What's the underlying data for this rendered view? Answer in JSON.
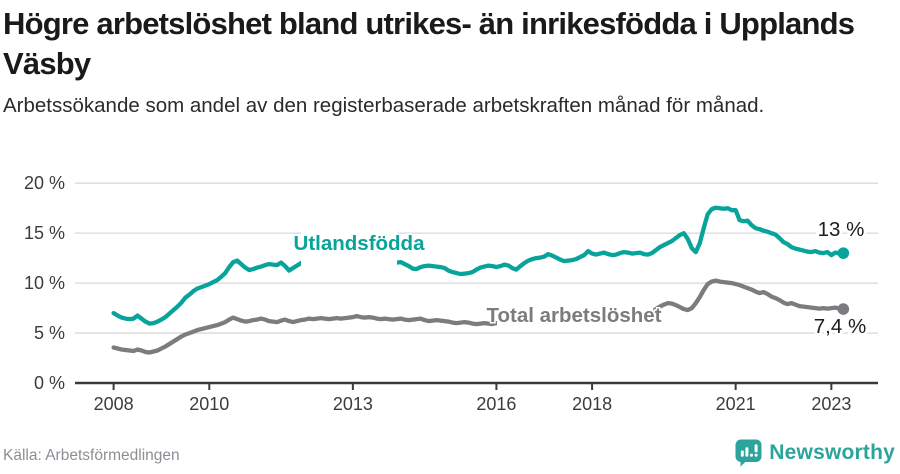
{
  "chart_data": {
    "type": "line",
    "title": "Högre arbetslöshet bland utrikes- än inrikesfödda i Upplands Väsby",
    "subtitle": "Arbetssökande som andel av den registerbaserade arbetskraften månad för månad.",
    "xlabel": "",
    "ylabel": "",
    "ylim": [
      0,
      20
    ],
    "grid": "horizontal",
    "x_start_year": 2008,
    "x_step_months": 1,
    "yticks": {
      "values": [
        0,
        5,
        10,
        15,
        20
      ],
      "labels": [
        "0 %",
        "5 %",
        "10 %",
        "15 %",
        "20 %"
      ]
    },
    "xticks": {
      "values": [
        2008,
        2010,
        2013,
        2016,
        2018,
        2021,
        2023
      ],
      "labels": [
        "2008",
        "2010",
        "2013",
        "2016",
        "2018",
        "2021",
        "2023"
      ]
    },
    "series": [
      {
        "name": "Utlandsfödda",
        "color": "#08a39a",
        "end_label": "13 %",
        "end_value": 13.0,
        "values": [
          7.0,
          6.75,
          6.55,
          6.45,
          6.4,
          6.45,
          6.75,
          6.45,
          6.15,
          5.95,
          6.0,
          6.15,
          6.35,
          6.6,
          6.95,
          7.3,
          7.65,
          8.05,
          8.55,
          8.85,
          9.2,
          9.45,
          9.6,
          9.75,
          9.9,
          10.1,
          10.3,
          10.65,
          11.0,
          11.6,
          12.1,
          12.25,
          11.9,
          11.55,
          11.3,
          11.4,
          11.55,
          11.65,
          11.8,
          11.9,
          11.85,
          11.8,
          12.05,
          11.7,
          11.25,
          11.5,
          11.75,
          12.0,
          12.1,
          11.9,
          11.75,
          11.9,
          12.0,
          12.1,
          12.0,
          11.9,
          12.0,
          12.1,
          12.2,
          12.1,
          12.15,
          12.25,
          12.3,
          12.2,
          12.1,
          12.2,
          12.1,
          12.0,
          12.1,
          12.0,
          11.95,
          12.05,
          12.1,
          11.9,
          11.7,
          11.45,
          11.4,
          11.6,
          11.7,
          11.75,
          11.7,
          11.65,
          11.6,
          11.5,
          11.25,
          11.1,
          11.0,
          10.9,
          10.95,
          11.0,
          11.1,
          11.35,
          11.55,
          11.65,
          11.75,
          11.7,
          11.6,
          11.7,
          11.85,
          11.75,
          11.5,
          11.35,
          11.7,
          12.0,
          12.25,
          12.4,
          12.5,
          12.55,
          12.65,
          12.9,
          12.75,
          12.55,
          12.35,
          12.2,
          12.25,
          12.3,
          12.4,
          12.6,
          12.8,
          13.2,
          12.95,
          12.85,
          12.95,
          13.05,
          12.9,
          12.8,
          12.85,
          13.0,
          13.1,
          13.05,
          12.95,
          13.0,
          13.05,
          12.9,
          12.85,
          13.0,
          13.3,
          13.6,
          13.8,
          14.0,
          14.2,
          14.5,
          14.8,
          15.0,
          14.4,
          13.5,
          13.1,
          14.0,
          15.5,
          16.9,
          17.4,
          17.55,
          17.5,
          17.45,
          17.5,
          17.3,
          17.3,
          16.3,
          16.2,
          16.25,
          15.8,
          15.5,
          15.4,
          15.25,
          15.15,
          15.0,
          14.85,
          14.5,
          14.1,
          13.9,
          13.6,
          13.45,
          13.35,
          13.25,
          13.15,
          13.1,
          13.2,
          13.05,
          13.0,
          13.1,
          12.8,
          13.05,
          12.95,
          13.0
        ]
      },
      {
        "name": "Total arbetslöshet",
        "color": "#7b7b80",
        "end_label": "7,4 %",
        "end_value": 7.4,
        "values": [
          3.55,
          3.45,
          3.35,
          3.3,
          3.25,
          3.2,
          3.35,
          3.25,
          3.1,
          3.05,
          3.15,
          3.25,
          3.45,
          3.65,
          3.9,
          4.15,
          4.4,
          4.65,
          4.85,
          5.0,
          5.15,
          5.3,
          5.4,
          5.5,
          5.6,
          5.7,
          5.8,
          5.95,
          6.1,
          6.35,
          6.55,
          6.4,
          6.25,
          6.15,
          6.2,
          6.3,
          6.35,
          6.45,
          6.35,
          6.2,
          6.15,
          6.1,
          6.25,
          6.35,
          6.2,
          6.1,
          6.2,
          6.3,
          6.35,
          6.45,
          6.4,
          6.45,
          6.5,
          6.45,
          6.4,
          6.45,
          6.5,
          6.45,
          6.5,
          6.55,
          6.6,
          6.7,
          6.6,
          6.55,
          6.6,
          6.55,
          6.45,
          6.4,
          6.45,
          6.4,
          6.35,
          6.4,
          6.45,
          6.35,
          6.3,
          6.35,
          6.4,
          6.45,
          6.3,
          6.2,
          6.25,
          6.3,
          6.25,
          6.2,
          6.15,
          6.05,
          6.0,
          6.05,
          6.1,
          6.05,
          5.95,
          5.9,
          5.95,
          6.0,
          5.95,
          5.9,
          6.0,
          6.05,
          5.95,
          5.9,
          5.95,
          5.9,
          5.95,
          6.0,
          5.95,
          6.0,
          6.05,
          6.0,
          6.05,
          6.1,
          6.05,
          6.1,
          6.15,
          6.1,
          6.15,
          6.2,
          6.25,
          6.2,
          6.25,
          6.3,
          6.3,
          6.35,
          6.3,
          6.35,
          6.4,
          6.45,
          6.5,
          6.55,
          6.6,
          6.65,
          6.7,
          6.75,
          6.75,
          6.85,
          6.95,
          7.1,
          7.4,
          7.65,
          7.85,
          8.0,
          7.95,
          7.8,
          7.6,
          7.4,
          7.3,
          7.5,
          8.0,
          8.6,
          9.3,
          9.9,
          10.15,
          10.25,
          10.15,
          10.1,
          10.05,
          10.0,
          9.9,
          9.8,
          9.65,
          9.5,
          9.35,
          9.15,
          9.0,
          9.1,
          8.9,
          8.65,
          8.5,
          8.3,
          8.05,
          7.9,
          8.0,
          7.85,
          7.7,
          7.65,
          7.6,
          7.55,
          7.5,
          7.45,
          7.5,
          7.45,
          7.5,
          7.55,
          7.45,
          7.4
        ]
      }
    ],
    "legend_position": "inline-labels"
  },
  "footer": {
    "source": "Källa: Arbetsförmedlingen",
    "brand": "Newsworthy",
    "brand_icon": "speech-bubble-bar-chart"
  },
  "colors": {
    "accent_teal": "#08a39a",
    "series_gray": "#7b7b80",
    "brand_teal": "#2da49b",
    "gridline": "#dadada",
    "axis": "#3a3a3a",
    "axis_text": "#3c3c3c",
    "annotation_text": "#1d1d1f",
    "source_text": "#8e8e95"
  }
}
